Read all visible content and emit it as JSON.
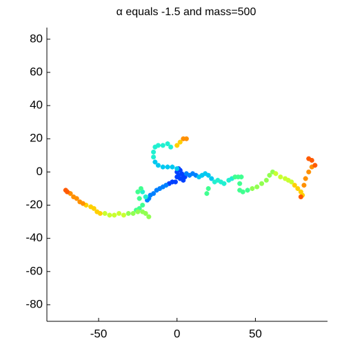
{
  "chart_data": {
    "type": "scatter",
    "title": "α equals -1.5 and mass=500",
    "xlim": [
      -83,
      96
    ],
    "ylim": [
      -90,
      87
    ],
    "xticks": [
      -50,
      0,
      50
    ],
    "yticks": [
      -80,
      -60,
      -40,
      -20,
      0,
      20,
      40,
      60,
      80
    ],
    "series": [
      {
        "color": "#0040ff",
        "x": [
          0,
          1,
          2,
          3,
          4,
          5,
          4,
          2,
          0,
          -1,
          -3,
          -5,
          1,
          3
        ],
        "y": [
          0,
          2,
          1,
          -1,
          -2,
          -3,
          -5,
          -4,
          -3,
          -6,
          -6,
          -7,
          -2,
          -4
        ]
      },
      {
        "color": "#0080ff",
        "x": [
          -7,
          -9,
          -11,
          -13,
          -15,
          -17,
          -18,
          -19,
          6,
          8,
          10,
          12
        ],
        "y": [
          -8,
          -9,
          -10,
          -11,
          -13,
          -14,
          -16,
          -17,
          -1,
          -2,
          -1,
          -2
        ]
      },
      {
        "color": "#00c8f0",
        "x": [
          0,
          -3,
          -6,
          -9,
          -12,
          -14,
          14,
          16,
          18,
          20,
          22
        ],
        "y": [
          2,
          3,
          3,
          3,
          4,
          6,
          -3,
          -2,
          -1,
          -2,
          -4
        ]
      },
      {
        "color": "#20f0d0",
        "x": [
          -15,
          -15,
          -14,
          -12,
          -9,
          -6,
          -4,
          24,
          26,
          28,
          30,
          33,
          35,
          -20,
          -22
        ],
        "y": [
          9,
          12,
          15,
          16,
          16,
          17,
          15,
          -6,
          -5,
          -6,
          -7,
          -5,
          -4,
          -15,
          -12
        ]
      },
      {
        "color": "#40ff90",
        "x": [
          -23,
          -25,
          -24,
          -22,
          -24,
          -26,
          37,
          39,
          41,
          40,
          40,
          42,
          45,
          20,
          19
        ],
        "y": [
          -10,
          -12,
          -16,
          -20,
          -22,
          -23,
          -3,
          -3,
          -3,
          -7,
          -11,
          -12,
          -11,
          -10,
          -13
        ]
      },
      {
        "color": "#90ff50",
        "x": [
          -22,
          -20,
          -18,
          -25,
          -28,
          -31,
          48,
          51,
          54,
          57,
          59,
          61
        ],
        "y": [
          -24,
          -25,
          -27,
          -24,
          -25,
          -25,
          -10,
          -9,
          -7,
          -5,
          -2,
          0
        ]
      },
      {
        "color": "#c8ff30",
        "x": [
          -34,
          -37,
          -40,
          -43,
          -46,
          63,
          66,
          69,
          71,
          73
        ],
        "y": [
          -26,
          -25,
          -26,
          -26,
          -25,
          -1,
          -3,
          -4,
          -5,
          -6
        ]
      },
      {
        "color": "#ffd000",
        "x": [
          -49,
          -51,
          -53,
          -55,
          -58,
          75,
          77,
          79,
          80,
          0,
          2
        ],
        "y": [
          -25,
          -24,
          -22,
          -21,
          -20,
          -8,
          -10,
          -12,
          -14,
          16,
          18
        ]
      },
      {
        "color": "#ff9000",
        "x": [
          -60,
          -62,
          -64,
          -66,
          -68,
          81,
          82,
          84,
          86,
          4,
          6
        ],
        "y": [
          -19,
          -18,
          -16,
          -15,
          -13,
          -8,
          -4,
          0,
          3,
          20,
          20
        ]
      },
      {
        "color": "#ff5a00",
        "x": [
          -70,
          -71,
          86,
          84,
          88,
          79
        ],
        "y": [
          -12,
          -11,
          7,
          8,
          4,
          -15
        ]
      }
    ]
  }
}
